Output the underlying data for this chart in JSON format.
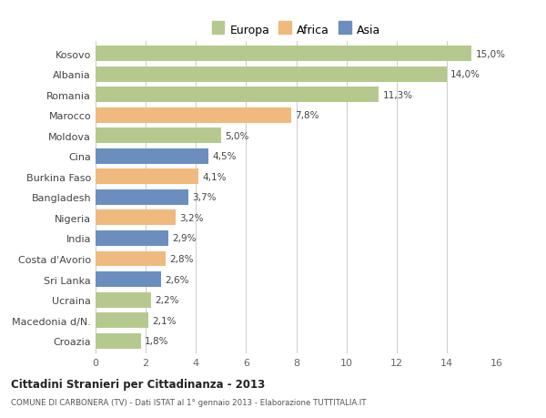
{
  "countries": [
    "Kosovo",
    "Albania",
    "Romania",
    "Marocco",
    "Moldova",
    "Cina",
    "Burkina Faso",
    "Bangladesh",
    "Nigeria",
    "India",
    "Costa d'Avorio",
    "Sri Lanka",
    "Ucraina",
    "Macedonia d/N.",
    "Croazia"
  ],
  "values": [
    15.0,
    14.0,
    11.3,
    7.8,
    5.0,
    4.5,
    4.1,
    3.7,
    3.2,
    2.9,
    2.8,
    2.6,
    2.2,
    2.1,
    1.8
  ],
  "labels": [
    "15,0%",
    "14,0%",
    "11,3%",
    "7,8%",
    "5,0%",
    "4,5%",
    "4,1%",
    "3,7%",
    "3,2%",
    "2,9%",
    "2,8%",
    "2,6%",
    "2,2%",
    "2,1%",
    "1,8%"
  ],
  "continents": [
    "Europa",
    "Europa",
    "Europa",
    "Africa",
    "Europa",
    "Asia",
    "Africa",
    "Asia",
    "Africa",
    "Asia",
    "Africa",
    "Asia",
    "Europa",
    "Europa",
    "Europa"
  ],
  "colors": {
    "Europa": "#b5c98e",
    "Africa": "#f0b97e",
    "Asia": "#6b8ebf"
  },
  "xlim": [
    0,
    16
  ],
  "xticks": [
    0,
    2,
    4,
    6,
    8,
    10,
    12,
    14,
    16
  ],
  "title": "Cittadini Stranieri per Cittadinanza - 2013",
  "subtitle": "COMUNE DI CARBONERA (TV) - Dati ISTAT al 1° gennaio 2013 - Elaborazione TUTTITALIA.IT",
  "bg_color": "#ffffff",
  "grid_color": "#cccccc",
  "bar_height": 0.75
}
